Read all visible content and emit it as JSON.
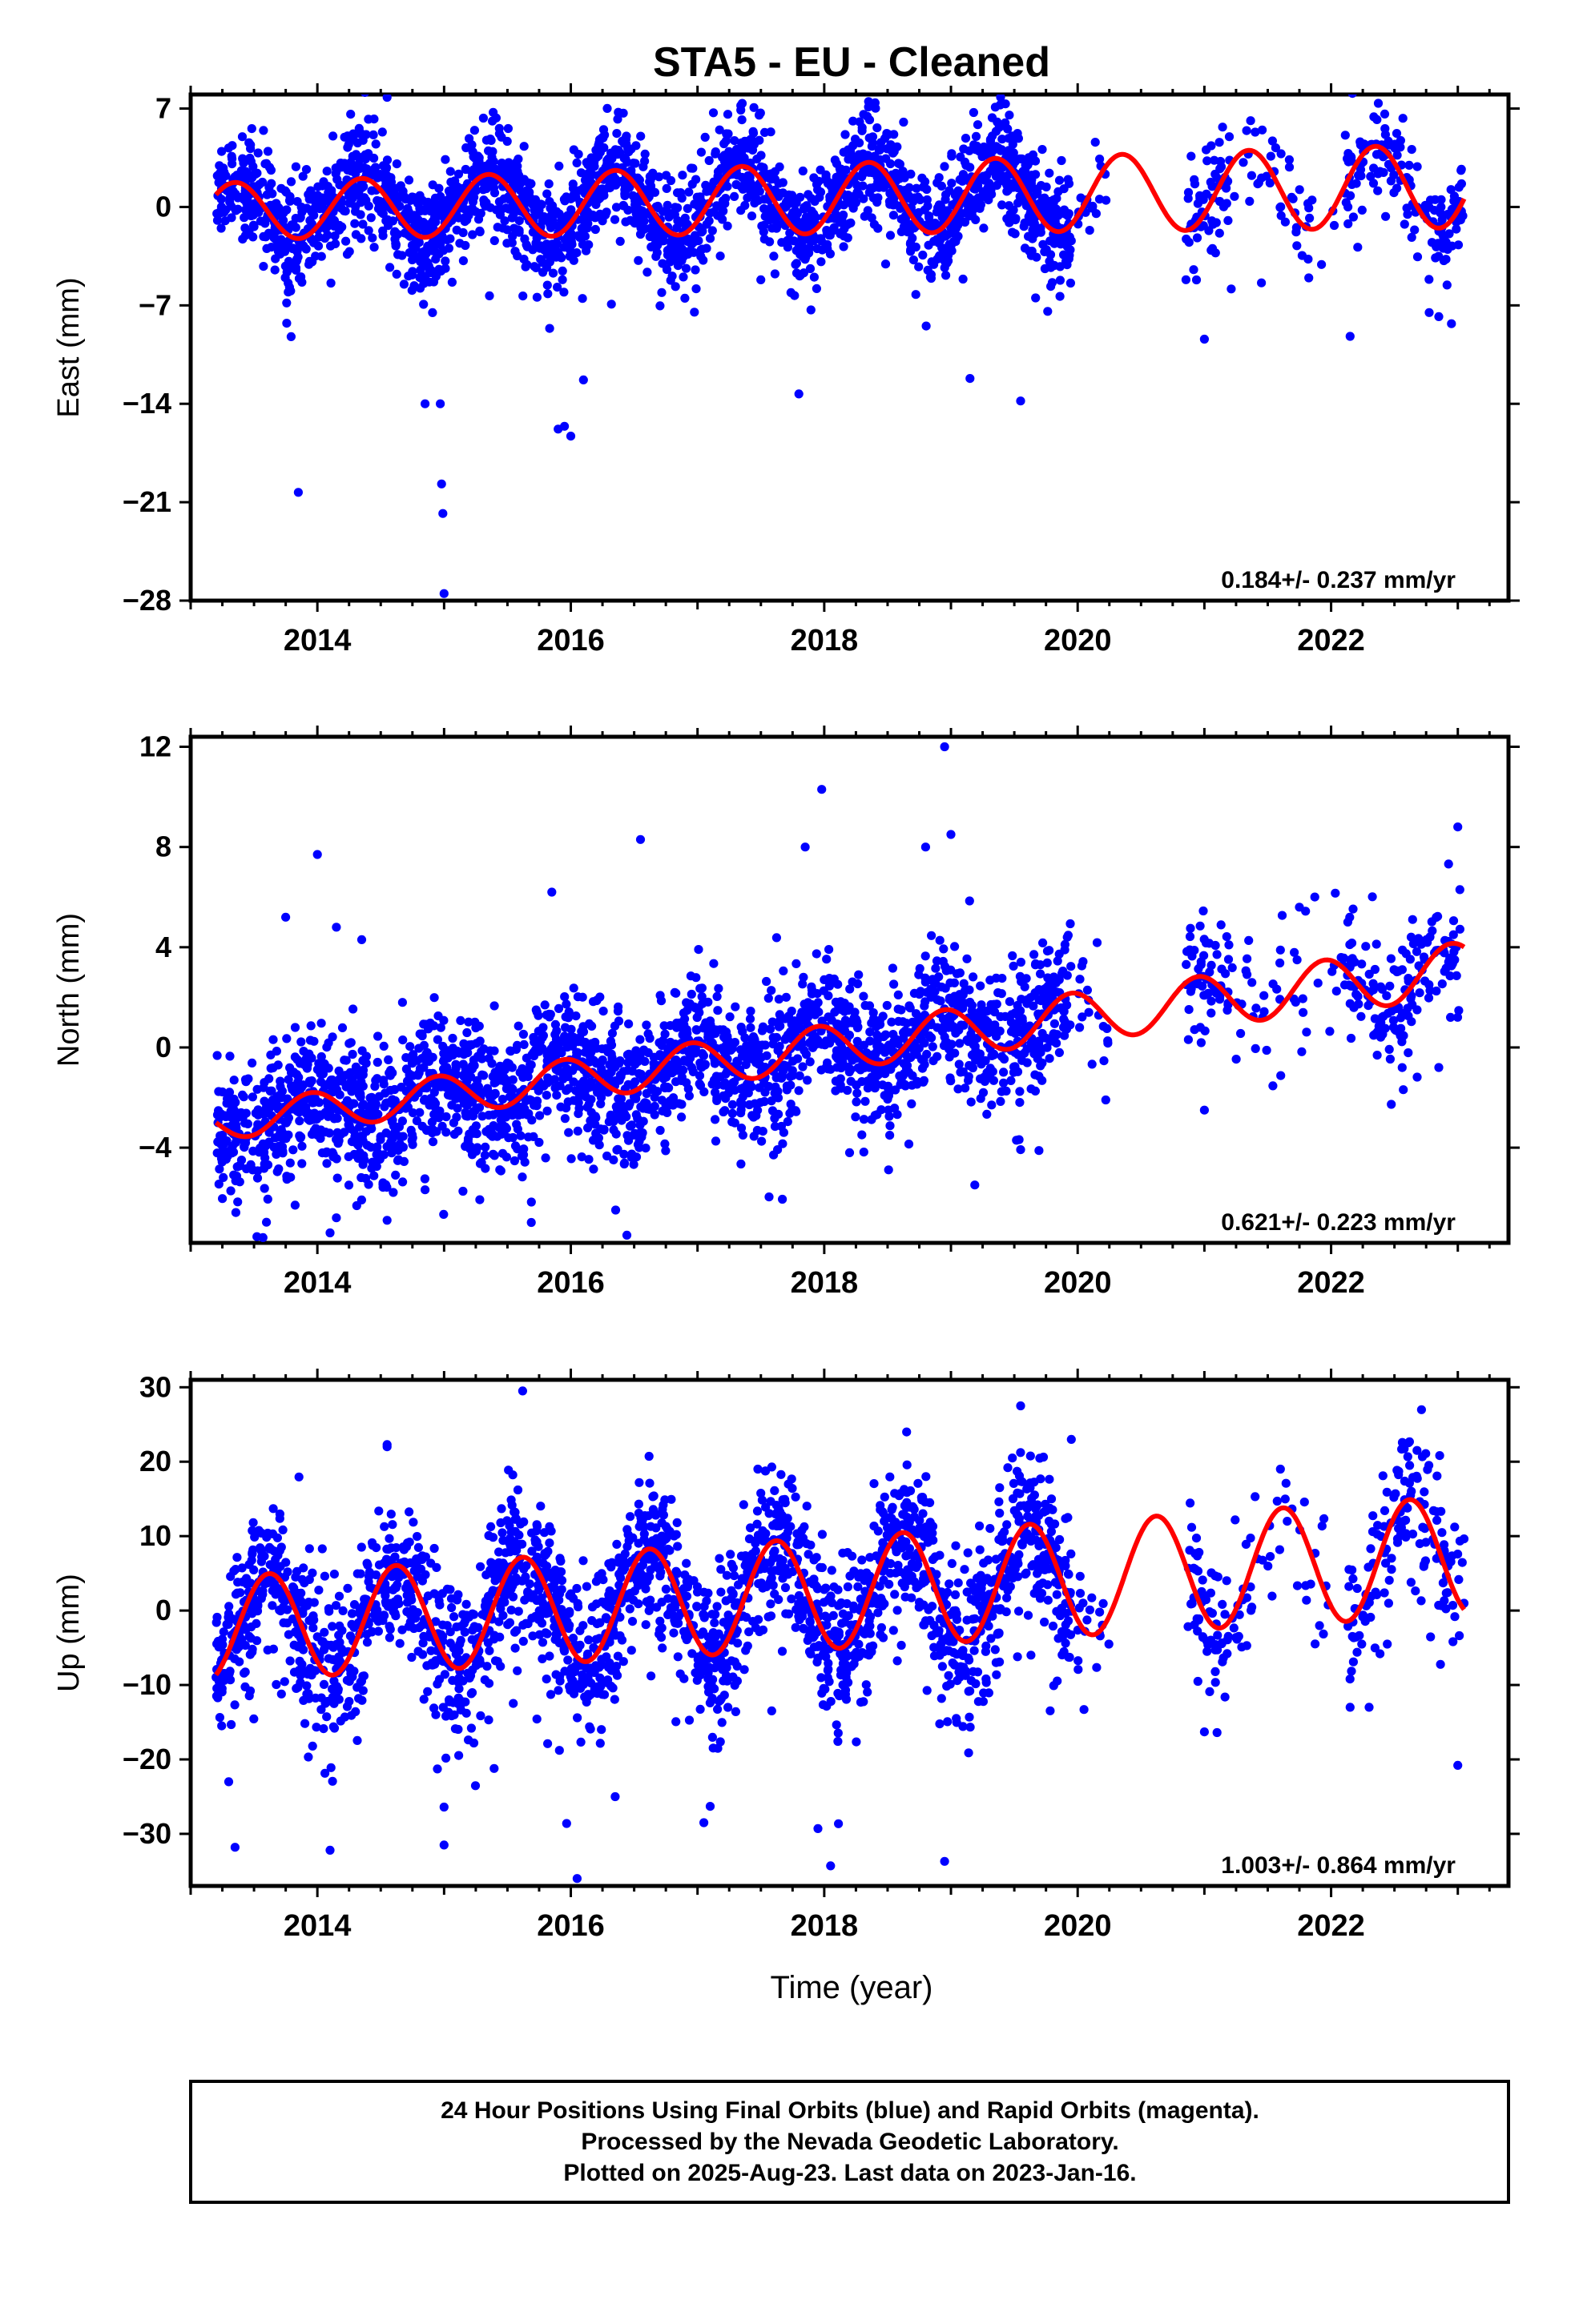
{
  "figure": {
    "title": "STA5  - EU - Cleaned",
    "xlabel": "Time (year)",
    "footer": [
      "24 Hour Positions Using Final Orbits (blue) and Rapid Orbits (magenta).",
      "Processed by the Nevada Geodetic Laboratory.",
      "Plotted on 2025-Aug-23. Last data on 2023-Jan-16."
    ]
  },
  "colors": {
    "final_orbits": "#0000ff",
    "fit_line": "#ff0000",
    "frame": "#000000"
  },
  "chart_data": [
    {
      "type": "scatter",
      "component": "east",
      "ylabel": "East (mm)",
      "xlim": [
        2013.0,
        2023.4
      ],
      "ylim": [
        -28,
        8
      ],
      "yticks": [
        7,
        0,
        -7,
        -14,
        -21,
        -28
      ],
      "xticks": [
        2014,
        2016,
        2018,
        2020,
        2022
      ],
      "rate_label": "0.184+/- 0.237 mm/yr",
      "fit": {
        "rate": 0.184,
        "offset": -0.3,
        "annual_amp": 2.8,
        "phase_year": 2014.35,
        "start_amp": 2.0,
        "end_amp": 3.0
      },
      "segments": [
        [
          2013.2,
          2019.95,
          1.2
        ],
        [
          2020.0,
          2020.25,
          0.25
        ],
        [
          2020.85,
          2021.2,
          0.6
        ],
        [
          2021.2,
          2021.8,
          0.2
        ],
        [
          2021.8,
          2022.1,
          0.12
        ],
        [
          2022.1,
          2023.05,
          0.55
        ]
      ],
      "noise": 1.9,
      "outliers": [
        [
          2014.55,
          7.8
        ],
        [
          2013.85,
          -20.3
        ],
        [
          2014.85,
          -14.0
        ],
        [
          2014.98,
          -19.7
        ],
        [
          2014.99,
          -21.8
        ],
        [
          2014.97,
          -14.0
        ],
        [
          2015.0,
          -27.5
        ],
        [
          2015.9,
          -15.8
        ],
        [
          2016.0,
          -16.3
        ],
        [
          2015.95,
          -15.6
        ],
        [
          2016.1,
          -12.3
        ],
        [
          2017.8,
          -13.3
        ],
        [
          2018.35,
          7.5
        ],
        [
          2019.15,
          -12.2
        ],
        [
          2019.55,
          -13.8
        ],
        [
          2021.0,
          -9.4
        ],
        [
          2021.45,
          -5.4
        ],
        [
          2022.15,
          -9.2
        ],
        [
          2022.85,
          -7.8
        ],
        [
          2022.95,
          -8.3
        ],
        [
          2019.35,
          7.1
        ],
        [
          2017.35,
          6.2
        ]
      ]
    },
    {
      "type": "scatter",
      "component": "north",
      "ylabel": "North (mm)",
      "xlim": [
        2013.0,
        2023.4
      ],
      "ylim": [
        -7.8,
        12.4
      ],
      "yticks": [
        12,
        8,
        4,
        0,
        -4
      ],
      "xticks": [
        2014,
        2016,
        2018,
        2020,
        2022
      ],
      "rate_label": "0.621+/- 0.223 mm/yr",
      "fit": {
        "rate": 0.621,
        "offset": -3.0,
        "annual_amp": 0.9,
        "phase_year": 2013.95,
        "start_amp": 0.7,
        "end_amp": 1.1
      },
      "segments": [
        [
          2013.2,
          2019.95,
          1.2
        ],
        [
          2020.0,
          2020.25,
          0.25
        ],
        [
          2020.85,
          2021.2,
          0.6
        ],
        [
          2021.2,
          2021.8,
          0.2
        ],
        [
          2021.8,
          2022.1,
          0.12
        ],
        [
          2022.1,
          2023.05,
          0.55
        ]
      ],
      "noise": 1.4,
      "outliers": [
        [
          2014.0,
          7.7
        ],
        [
          2013.75,
          5.2
        ],
        [
          2014.15,
          4.8
        ],
        [
          2014.35,
          4.3
        ],
        [
          2014.15,
          -6.8
        ],
        [
          2014.55,
          -6.9
        ],
        [
          2015.85,
          6.2
        ],
        [
          2016.55,
          8.3
        ],
        [
          2017.85,
          8.0
        ],
        [
          2017.98,
          10.3
        ],
        [
          2018.95,
          12.0
        ],
        [
          2018.8,
          8.0
        ],
        [
          2019.0,
          8.5
        ],
        [
          2018.2,
          -4.2
        ],
        [
          2021.0,
          -2.5
        ],
        [
          2021.75,
          5.6
        ],
        [
          2023.0,
          8.8
        ],
        [
          2022.85,
          -0.8
        ],
        [
          2014.1,
          -7.4
        ]
      ]
    },
    {
      "type": "scatter",
      "component": "up",
      "ylabel": "Up (mm)",
      "xlim": [
        2013.0,
        2023.4
      ],
      "ylim": [
        -37,
        31
      ],
      "yticks": [
        30,
        20,
        10,
        0,
        -10,
        -20,
        -30
      ],
      "xticks": [
        2014,
        2016,
        2018,
        2020,
        2022
      ],
      "rate_label": "1.003+/- 0.864 mm/yr",
      "fit": {
        "rate": 1.003,
        "offset": -2.5,
        "annual_amp": 7.0,
        "phase_year": 2013.62,
        "start_amp": 7.0,
        "end_amp": 8.0
      },
      "segments": [
        [
          2013.2,
          2019.95,
          1.2
        ],
        [
          2020.0,
          2020.25,
          0.25
        ],
        [
          2020.85,
          2021.2,
          0.6
        ],
        [
          2021.2,
          2021.8,
          0.2
        ],
        [
          2021.8,
          2022.1,
          0.12
        ],
        [
          2022.1,
          2023.05,
          0.55
        ]
      ],
      "noise": 5.2,
      "outliers": [
        [
          2015.62,
          29.5
        ],
        [
          2014.55,
          22.3
        ],
        [
          2018.65,
          24.0
        ],
        [
          2019.55,
          27.5
        ],
        [
          2019.95,
          23.0
        ],
        [
          2013.35,
          -31.8
        ],
        [
          2014.1,
          -32.2
        ],
        [
          2015.0,
          -31.5
        ],
        [
          2016.05,
          -36.0
        ],
        [
          2018.05,
          -34.3
        ],
        [
          2017.95,
          -29.3
        ],
        [
          2018.95,
          -33.7
        ],
        [
          2015.0,
          -26.4
        ],
        [
          2016.35,
          -25.0
        ],
        [
          2017.1,
          -26.3
        ],
        [
          2017.05,
          -28.5
        ],
        [
          2021.0,
          -16.3
        ],
        [
          2021.1,
          -16.4
        ],
        [
          2023.0,
          -20.8
        ],
        [
          2022.15,
          -13.0
        ],
        [
          2022.3,
          -13.0
        ],
        [
          2013.3,
          -23.0
        ],
        [
          2020.05,
          -13.3
        ],
        [
          2021.4,
          15.3
        ],
        [
          2021.6,
          19.0
        ],
        [
          2022.62,
          19.5
        ],
        [
          2014.55,
          22.0
        ]
      ]
    }
  ]
}
